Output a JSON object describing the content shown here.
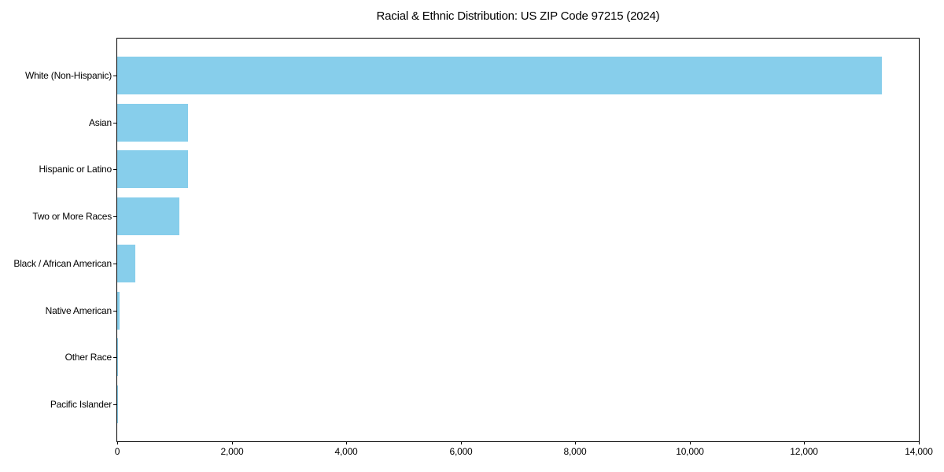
{
  "chart_data": {
    "type": "bar",
    "orientation": "horizontal",
    "title": "Racial & Ethnic Distribution: US ZIP Code 97215 (2024)",
    "categories": [
      "White (Non-Hispanic)",
      "Asian",
      "Hispanic or Latino",
      "Two or More Races",
      "Black / African American",
      "Native American",
      "Other Race",
      "Pacific Islander"
    ],
    "values": [
      13350,
      1240,
      1230,
      1080,
      310,
      40,
      15,
      8
    ],
    "xlabel": "",
    "ylabel": "",
    "xlim": [
      0,
      14000
    ],
    "xtick_values": [
      0,
      2000,
      4000,
      6000,
      8000,
      10000,
      12000,
      14000
    ],
    "xtick_labels": [
      "0",
      "2,000",
      "4,000",
      "6,000",
      "8,000",
      "10,000",
      "12,000",
      "14,000"
    ],
    "bar_color": "#87CEEB",
    "axis_color": "#000000",
    "text_color": "#000000",
    "background": "#ffffff",
    "grid": false,
    "legend_position": "none"
  }
}
